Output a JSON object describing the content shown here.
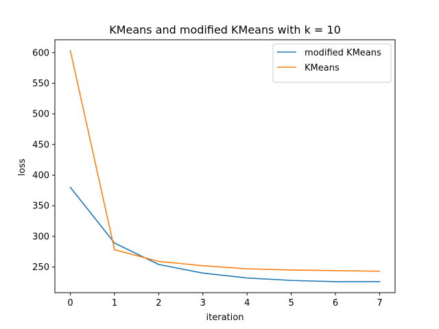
{
  "chart_data": {
    "type": "line",
    "title": "KMeans and modified KMeans with k = 10",
    "xlabel": "iteration",
    "ylabel": "loss",
    "x": [
      0,
      1,
      2,
      3,
      4,
      5,
      6,
      7
    ],
    "xlim": [
      -0.35,
      7.35
    ],
    "ylim": [
      208,
      621
    ],
    "xticks": [
      0,
      1,
      2,
      3,
      4,
      5,
      6,
      7
    ],
    "yticks": [
      250,
      300,
      350,
      400,
      450,
      500,
      550,
      600
    ],
    "grid": false,
    "legend_position": "top-right",
    "series": [
      {
        "name": "modified KMeans",
        "color": "#1f77b4",
        "values": [
          380,
          289,
          254,
          240,
          232,
          228,
          226,
          226
        ]
      },
      {
        "name": "KMeans",
        "color": "#ff7f0e",
        "values": [
          603,
          278,
          259,
          252,
          247,
          245,
          244,
          243
        ]
      }
    ]
  }
}
